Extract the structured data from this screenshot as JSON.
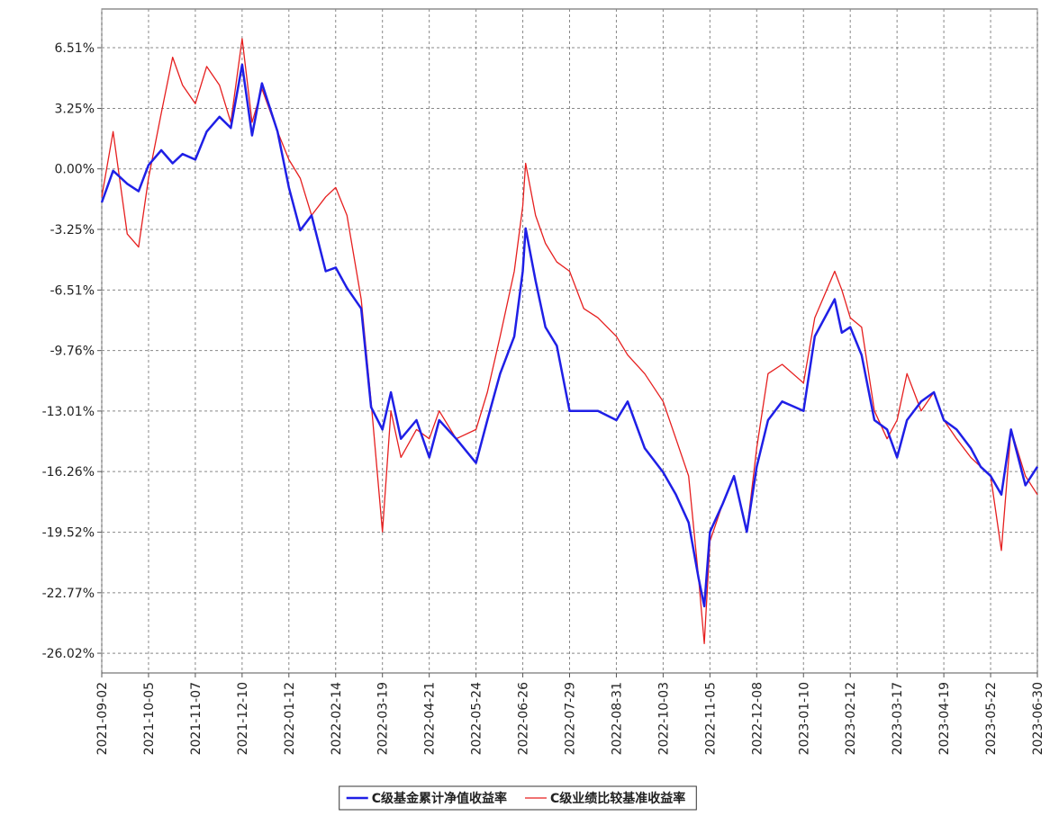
{
  "chart_data": {
    "type": "line",
    "x": [
      "2021-09-02",
      "2021-09-10",
      "2021-09-20",
      "2021-09-28",
      "2021-10-05",
      "2021-10-14",
      "2021-10-22",
      "2021-10-29",
      "2021-11-07",
      "2021-11-15",
      "2021-11-24",
      "2021-12-02",
      "2021-12-10",
      "2021-12-17",
      "2021-12-24",
      "2022-01-04",
      "2022-01-12",
      "2022-01-20",
      "2022-01-28",
      "2022-02-07",
      "2022-02-14",
      "2022-02-22",
      "2022-03-04",
      "2022-03-11",
      "2022-03-19",
      "2022-03-25",
      "2022-04-01",
      "2022-04-12",
      "2022-04-21",
      "2022-04-28",
      "2022-05-10",
      "2022-05-24",
      "2022-06-01",
      "2022-06-10",
      "2022-06-20",
      "2022-06-26",
      "2022-06-28",
      "2022-07-05",
      "2022-07-12",
      "2022-07-20",
      "2022-07-29",
      "2022-08-08",
      "2022-08-18",
      "2022-08-31",
      "2022-09-08",
      "2022-09-20",
      "2022-10-03",
      "2022-10-12",
      "2022-10-21",
      "2022-10-28",
      "2022-11-01",
      "2022-11-05",
      "2022-11-14",
      "2022-11-22",
      "2022-12-01",
      "2022-12-08",
      "2022-12-16",
      "2022-12-26",
      "2023-01-10",
      "2023-01-18",
      "2023-02-01",
      "2023-02-06",
      "2023-02-12",
      "2023-02-20",
      "2023-03-01",
      "2023-03-10",
      "2023-03-17",
      "2023-03-24",
      "2023-04-03",
      "2023-04-12",
      "2023-04-19",
      "2023-04-28",
      "2023-05-08",
      "2023-05-15",
      "2023-05-22",
      "2023-05-31",
      "2023-06-08",
      "2023-06-20",
      "2023-06-30"
    ],
    "series": [
      {
        "name": "C级基金累计净值收益率",
        "color": "#1f1fe6",
        "width": 2.5,
        "values": [
          -1.8,
          -0.1,
          -0.8,
          -1.2,
          0.2,
          1.0,
          0.3,
          0.8,
          0.5,
          2.0,
          2.8,
          2.2,
          5.6,
          1.8,
          4.6,
          2.0,
          -1.0,
          -3.3,
          -2.5,
          -5.5,
          -5.3,
          -6.4,
          -7.5,
          -12.8,
          -14.0,
          -12.0,
          -14.5,
          -13.5,
          -15.5,
          -13.5,
          -14.5,
          -15.8,
          -13.5,
          -11.0,
          -9.0,
          -5.5,
          -3.2,
          -6.0,
          -8.5,
          -9.5,
          -13.0,
          -13.0,
          -13.0,
          -13.5,
          -12.5,
          -15.0,
          -16.3,
          -17.5,
          -19.0,
          -22.0,
          -23.5,
          -19.5,
          -18.0,
          -16.5,
          -19.5,
          -16.0,
          -13.5,
          -12.5,
          -13.0,
          -9.0,
          -7.0,
          -8.8,
          -8.5,
          -10.0,
          -13.5,
          -14.0,
          -15.5,
          -13.5,
          -12.5,
          -12.0,
          -13.5,
          -14.0,
          -15.0,
          -16.0,
          -16.5,
          -17.5,
          -14.0,
          -17.0,
          -16.0
        ]
      },
      {
        "name": "C级业绩比较基准收益率",
        "color": "#e61f1f",
        "width": 1.3,
        "values": [
          -1.5,
          2.0,
          -3.5,
          -4.2,
          -0.5,
          3.0,
          6.0,
          4.5,
          3.5,
          5.5,
          4.5,
          2.5,
          7.0,
          2.5,
          4.3,
          2.0,
          0.5,
          -0.5,
          -2.5,
          -1.5,
          -1.0,
          -2.5,
          -7.0,
          -12.5,
          -19.5,
          -13.0,
          -15.5,
          -14.0,
          -14.5,
          -13.0,
          -14.5,
          -14.0,
          -12.0,
          -9.0,
          -5.5,
          -2.0,
          0.3,
          -2.5,
          -4.0,
          -5.0,
          -5.5,
          -7.5,
          -8.0,
          -9.0,
          -10.0,
          -11.0,
          -12.5,
          -14.5,
          -16.5,
          -22.0,
          -25.5,
          -20.0,
          -18.0,
          -16.5,
          -19.5,
          -15.0,
          -11.0,
          -10.5,
          -11.5,
          -8.0,
          -5.5,
          -6.5,
          -8.0,
          -8.5,
          -13.0,
          -14.5,
          -13.5,
          -11.0,
          -13.0,
          -12.0,
          -13.5,
          -14.5,
          -15.5,
          -16.0,
          -16.5,
          -20.5,
          -14.0,
          -16.5,
          -17.5
        ]
      }
    ],
    "xlim": [
      "2021-09-02",
      "2023-06-30"
    ],
    "xticks": [
      "2021-09-02",
      "2021-10-05",
      "2021-11-07",
      "2021-12-10",
      "2022-01-12",
      "2022-02-14",
      "2022-03-19",
      "2022-04-21",
      "2022-05-24",
      "2022-06-26",
      "2022-07-29",
      "2022-08-31",
      "2022-10-03",
      "2022-11-05",
      "2022-12-08",
      "2023-01-10",
      "2023-02-12",
      "2023-03-17",
      "2023-04-19",
      "2023-05-22",
      "2023-06-30"
    ],
    "ylim": [
      -27.08,
      8.59
    ],
    "yticks": [
      {
        "value": 6.51,
        "label": "6.51%"
      },
      {
        "value": 3.25,
        "label": "3.25%"
      },
      {
        "value": 0,
        "label": "0.00%"
      },
      {
        "value": -3.25,
        "label": "-3.25%"
      },
      {
        "value": -6.51,
        "label": "-6.51%"
      },
      {
        "value": -9.76,
        "label": "-9.76%"
      },
      {
        "value": -13.01,
        "label": "-13.01%"
      },
      {
        "value": -16.26,
        "label": "-16.26%"
      },
      {
        "value": -19.52,
        "label": "-19.52%"
      },
      {
        "value": -22.77,
        "label": "-22.77%"
      },
      {
        "value": -26.02,
        "label": "-26.02%"
      }
    ],
    "grid": true,
    "legend": "bottom"
  }
}
